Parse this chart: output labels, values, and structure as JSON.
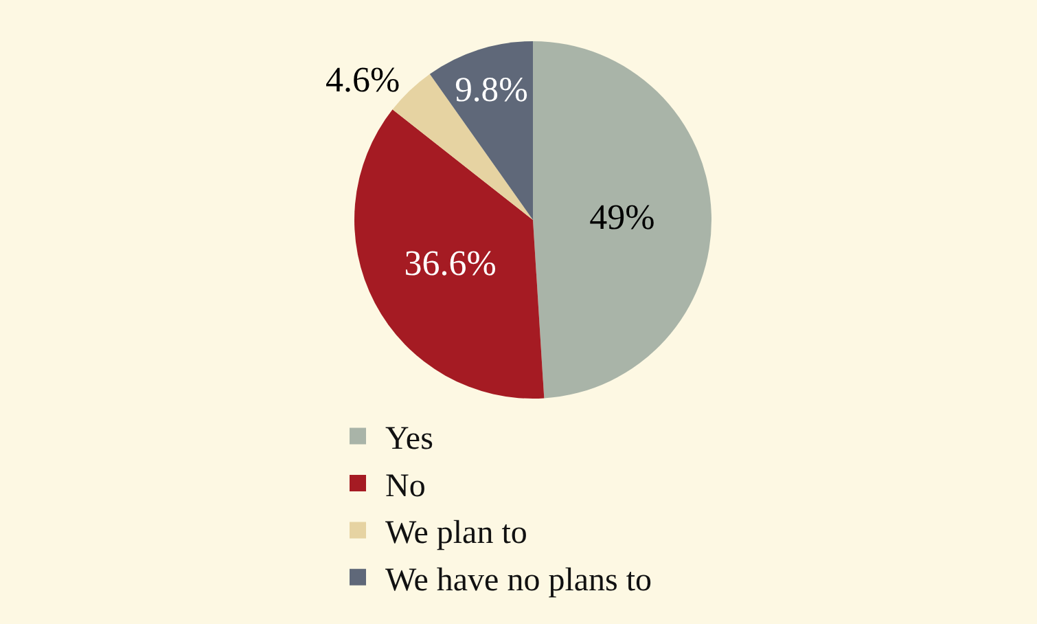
{
  "chart_data": {
    "type": "pie",
    "categories": [
      "Yes",
      "No",
      "We plan to",
      "We have no plans to"
    ],
    "values": [
      49,
      36.6,
      4.6,
      9.8
    ],
    "value_labels": [
      "49%",
      "36.6%",
      "4.6%",
      "9.8%"
    ],
    "colors": [
      "#a9b4a8",
      "#a51b23",
      "#e6d3a2",
      "#5f6879"
    ],
    "legend": "bottom"
  }
}
